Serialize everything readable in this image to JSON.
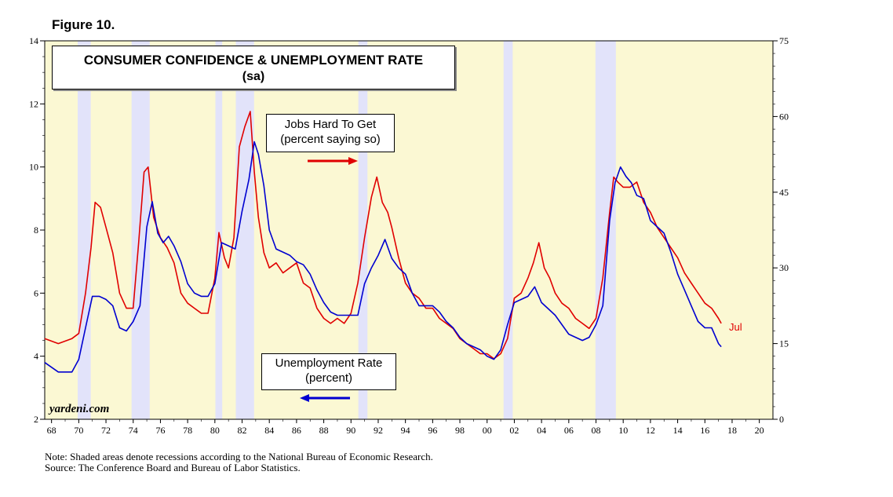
{
  "figure_label": "Figure 10.",
  "chart_data": {
    "type": "line",
    "title": "CONSUMER CONFIDENCE & UNEMPLOYMENT RATE",
    "subtitle": "(sa)",
    "x_range": [
      1967.5,
      2021
    ],
    "x_ticks": [
      "68",
      "70",
      "72",
      "74",
      "76",
      "78",
      "80",
      "82",
      "84",
      "86",
      "88",
      "90",
      "92",
      "94",
      "96",
      "98",
      "00",
      "02",
      "04",
      "06",
      "08",
      "10",
      "12",
      "14",
      "16",
      "18",
      "20"
    ],
    "x_tick_years": [
      1968,
      1970,
      1972,
      1974,
      1976,
      1978,
      1980,
      1982,
      1984,
      1986,
      1988,
      1990,
      1992,
      1994,
      1996,
      1998,
      2000,
      2002,
      2004,
      2006,
      2008,
      2010,
      2012,
      2014,
      2016,
      2018,
      2020
    ],
    "y_left": {
      "range": [
        2,
        14
      ],
      "ticks": [
        "2",
        "4",
        "6",
        "8",
        "10",
        "12",
        "14"
      ],
      "tick_values": [
        2,
        4,
        6,
        8,
        10,
        12,
        14
      ]
    },
    "y_right": {
      "range": [
        0,
        75
      ],
      "ticks": [
        "0",
        "15",
        "30",
        "45",
        "60",
        "75"
      ],
      "tick_values": [
        0,
        15,
        30,
        45,
        60,
        75
      ]
    },
    "recessions": [
      [
        1969.92,
        1970.88
      ],
      [
        1973.88,
        1975.21
      ],
      [
        1980.04,
        1980.54
      ],
      [
        1981.54,
        1982.88
      ],
      [
        1990.54,
        1991.21
      ],
      [
        2001.21,
        2001.88
      ],
      [
        2007.96,
        2009.46
      ]
    ],
    "series": [
      {
        "name": "Jobs Hard To Get (percent saying so)",
        "axis": "right",
        "color": "#e00000",
        "x": [
          1967.5,
          1968.5,
          1969.5,
          1970.0,
          1970.5,
          1970.9,
          1971.2,
          1971.6,
          1972.0,
          1972.5,
          1973.0,
          1973.5,
          1974.0,
          1974.4,
          1974.8,
          1975.1,
          1975.5,
          1976.0,
          1976.5,
          1977.0,
          1977.5,
          1978.0,
          1978.5,
          1979.0,
          1979.5,
          1980.0,
          1980.3,
          1980.7,
          1981.0,
          1981.4,
          1981.8,
          1982.2,
          1982.6,
          1982.9,
          1983.2,
          1983.6,
          1984.0,
          1984.5,
          1985.0,
          1985.5,
          1986.0,
          1986.5,
          1987.0,
          1987.5,
          1988.0,
          1988.5,
          1989.0,
          1989.5,
          1990.0,
          1990.5,
          1991.0,
          1991.5,
          1991.9,
          1992.3,
          1992.7,
          1993.0,
          1993.5,
          1994.0,
          1994.5,
          1995.0,
          1995.5,
          1996.0,
          1996.5,
          1997.0,
          1997.5,
          1998.0,
          1998.5,
          1999.0,
          1999.5,
          2000.0,
          2000.5,
          2001.0,
          2001.5,
          2002.0,
          2002.5,
          2003.0,
          2003.4,
          2003.8,
          2004.2,
          2004.6,
          2005.0,
          2005.5,
          2006.0,
          2006.5,
          2007.0,
          2007.5,
          2008.0,
          2008.5,
          2009.0,
          2009.3,
          2009.6,
          2010.0,
          2010.5,
          2011.0,
          2011.5,
          2012.0,
          2012.5,
          2013.0,
          2013.5,
          2014.0,
          2014.5,
          2015.0,
          2015.5,
          2016.0,
          2016.5,
          2017.0,
          2017.2
        ],
        "y": [
          16,
          15,
          16,
          17,
          25,
          34,
          43,
          42,
          38,
          33,
          25,
          22,
          22,
          35,
          49,
          50,
          40,
          36,
          34,
          31,
          25,
          23,
          22,
          21,
          21,
          28,
          37,
          32,
          30,
          36,
          54,
          58,
          61,
          49,
          40,
          33,
          30,
          31,
          29,
          30,
          31,
          27,
          26,
          22,
          20,
          19,
          20,
          19,
          21,
          27,
          36,
          44,
          48,
          43,
          41,
          38,
          32,
          27,
          25,
          24,
          22,
          22,
          20,
          19,
          18,
          16,
          15,
          14,
          13,
          13,
          12,
          13,
          16,
          24,
          25,
          28,
          31,
          35,
          30,
          28,
          25,
          23,
          22,
          20,
          19,
          18,
          20,
          28,
          41,
          48,
          47,
          46,
          46,
          47,
          43,
          41,
          38,
          36,
          34,
          32,
          29,
          27,
          25,
          23,
          22,
          20,
          19
        ]
      },
      {
        "name": "Unemployment Rate (percent)",
        "axis": "left",
        "color": "#0000d0",
        "x": [
          1967.5,
          1968.5,
          1969.5,
          1970.0,
          1970.5,
          1971.0,
          1971.5,
          1972.0,
          1972.5,
          1973.0,
          1973.5,
          1974.0,
          1974.5,
          1975.0,
          1975.4,
          1975.8,
          1976.2,
          1976.6,
          1977.0,
          1977.5,
          1978.0,
          1978.5,
          1979.0,
          1979.5,
          1980.0,
          1980.5,
          1981.0,
          1981.5,
          1982.0,
          1982.5,
          1982.9,
          1983.2,
          1983.6,
          1984.0,
          1984.5,
          1985.0,
          1985.5,
          1986.0,
          1986.5,
          1987.0,
          1987.5,
          1988.0,
          1988.5,
          1989.0,
          1989.5,
          1990.0,
          1990.5,
          1991.0,
          1991.5,
          1992.0,
          1992.5,
          1993.0,
          1993.5,
          1994.0,
          1994.5,
          1995.0,
          1995.5,
          1996.0,
          1996.5,
          1997.0,
          1997.5,
          1998.0,
          1998.5,
          1999.0,
          1999.5,
          2000.0,
          2000.5,
          2001.0,
          2001.5,
          2002.0,
          2002.5,
          2003.0,
          2003.5,
          2004.0,
          2004.5,
          2005.0,
          2005.5,
          2006.0,
          2006.5,
          2007.0,
          2007.5,
          2008.0,
          2008.5,
          2009.0,
          2009.4,
          2009.8,
          2010.2,
          2010.6,
          2011.0,
          2011.5,
          2012.0,
          2012.5,
          2013.0,
          2013.5,
          2014.0,
          2014.5,
          2015.0,
          2015.5,
          2016.0,
          2016.5,
          2017.0,
          2017.2
        ],
        "y": [
          3.8,
          3.5,
          3.5,
          3.9,
          4.9,
          5.9,
          5.9,
          5.8,
          5.6,
          4.9,
          4.8,
          5.1,
          5.6,
          8.1,
          8.9,
          7.9,
          7.6,
          7.8,
          7.5,
          7.0,
          6.3,
          6.0,
          5.9,
          5.9,
          6.3,
          7.6,
          7.5,
          7.4,
          8.6,
          9.6,
          10.8,
          10.4,
          9.4,
          8.0,
          7.4,
          7.3,
          7.2,
          7.0,
          6.9,
          6.6,
          6.1,
          5.7,
          5.4,
          5.3,
          5.3,
          5.3,
          5.3,
          6.3,
          6.8,
          7.2,
          7.7,
          7.1,
          6.8,
          6.6,
          6.0,
          5.6,
          5.6,
          5.6,
          5.4,
          5.1,
          4.9,
          4.6,
          4.4,
          4.3,
          4.2,
          4.0,
          3.9,
          4.2,
          5.0,
          5.7,
          5.8,
          5.9,
          6.2,
          5.7,
          5.5,
          5.3,
          5.0,
          4.7,
          4.6,
          4.5,
          4.6,
          5.0,
          5.6,
          8.3,
          9.5,
          10.0,
          9.7,
          9.5,
          9.1,
          9.0,
          8.3,
          8.1,
          7.9,
          7.3,
          6.6,
          6.1,
          5.6,
          5.1,
          4.9,
          4.9,
          4.4,
          4.3
        ]
      }
    ],
    "legend": {
      "jobs_line1": "Jobs Hard To Get",
      "jobs_line2": "(percent saying so)",
      "unemp_line1": "Unemployment Rate",
      "unemp_line2": "(percent)"
    },
    "last_label": "Jul"
  },
  "watermark": "yardeni.com",
  "note": "Note: Shaded areas denote recessions according to the National Bureau of Economic Research.",
  "source": "Source: The Conference Board and Bureau of Labor Statistics.",
  "colors": {
    "background": "#fbf8d3",
    "recession": "#e2e3fa",
    "jobs": "#e00000",
    "unemployment": "#0000d0"
  }
}
